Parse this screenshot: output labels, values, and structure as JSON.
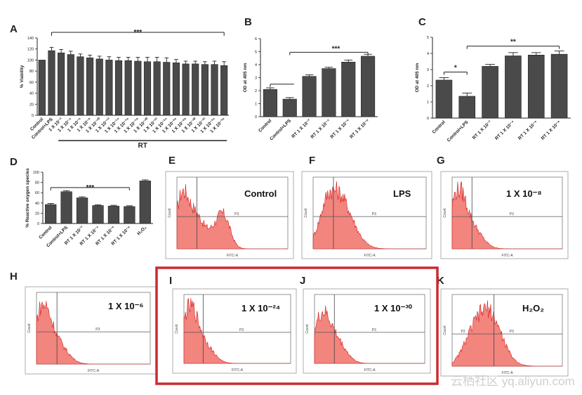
{
  "chart_data": [
    {
      "panel": "A",
      "type": "bar",
      "ylabel": "% Viability",
      "ylim": [
        0,
        140
      ],
      "yticks": [
        "0",
        "20",
        "40",
        "60",
        "80",
        "100",
        "120",
        "140"
      ],
      "categories": [
        "Control",
        "Control+LPS",
        "1 X 10⁻²",
        "1 X 10⁻⁴",
        "1 X 10⁻⁶",
        "1 X 10⁻⁸",
        "1 X 10⁻¹⁰",
        "1 X 10⁻¹²",
        "1 X 10⁻¹⁴",
        "1 X 10⁻¹⁶",
        "1 X 10⁻¹⁸",
        "1 X 10⁻²⁰",
        "1 X 10⁻²²",
        "1 X 10⁻²⁴",
        "1 X 10⁻²⁶",
        "1 X 10⁻²⁸",
        "1 X 10⁻³⁰",
        "1 X 10⁻³²",
        "1 X 10⁻³⁴",
        "1 X 10⁻³⁶"
      ],
      "values": [
        100,
        117,
        113,
        110,
        106,
        104,
        102,
        100,
        99,
        99,
        98,
        97,
        97,
        96,
        95,
        93,
        93,
        92,
        92,
        90
      ],
      "errors": [
        0,
        6,
        6,
        6,
        5,
        5,
        5,
        6,
        6,
        6,
        7,
        8,
        8,
        8,
        6,
        5,
        5,
        5,
        6,
        7
      ],
      "group_label": "RT",
      "significance": "***"
    },
    {
      "panel": "B",
      "type": "bar",
      "ylabel": "OD at 405 nm",
      "ylim": [
        0,
        6
      ],
      "yticks": [
        "0",
        "1",
        "2",
        "3",
        "4",
        "5",
        "6"
      ],
      "categories": [
        "Control",
        "Control+LPS",
        "RT 1 X 10⁻²",
        "RT 1 X 10⁻⁴",
        "RT 1 X 10⁻⁶",
        "RT 1 X 10⁻⁸"
      ],
      "values": [
        2.1,
        1.35,
        3.1,
        3.7,
        4.2,
        4.65
      ],
      "errors": [
        0.12,
        0.12,
        0.12,
        0.1,
        0.15,
        0.15
      ],
      "significance": "***"
    },
    {
      "panel": "C",
      "type": "bar",
      "ylabel": "OD at 405 nm",
      "ylim": [
        0,
        5
      ],
      "yticks": [
        "0",
        "1",
        "2",
        "3",
        "4",
        "5"
      ],
      "categories": [
        "Control",
        "Control+LPS",
        "RT 1 X 10⁻²",
        "RT 1 X 10⁻⁴",
        "RT 1 X 10⁻⁶",
        "RT 1 X 10⁻⁸"
      ],
      "values": [
        2.35,
        1.35,
        3.2,
        3.85,
        3.9,
        3.95
      ],
      "errors": [
        0.15,
        0.2,
        0.12,
        0.2,
        0.15,
        0.2
      ],
      "sig_small": "*",
      "significance": "**"
    },
    {
      "panel": "D",
      "type": "bar",
      "ylabel": "% Reactive oxygen species",
      "ylim": [
        0,
        100
      ],
      "yticks": [
        "0",
        "20",
        "40",
        "60",
        "80",
        "100"
      ],
      "categories": [
        "Control",
        "Control+LPS",
        "RT 1 X 10⁻²",
        "RT 1 X 10⁻⁴",
        "RT 1 X 10⁻⁶",
        "RT 1 X 10⁻⁸",
        "H₂O₂"
      ],
      "values": [
        37,
        62,
        50,
        35,
        34,
        33,
        83
      ],
      "errors": [
        2,
        2,
        2,
        1.5,
        1.5,
        1.5,
        2
      ],
      "significance": "***"
    }
  ],
  "flow_panels": [
    {
      "panel": "E",
      "title": "Control",
      "gate": "P3",
      "x_axis": "FITC-A",
      "y_axis": "Count"
    },
    {
      "panel": "F",
      "title": "LPS",
      "gate": "P3",
      "x_axis": "FITC-A",
      "y_axis": "Count"
    },
    {
      "panel": "G",
      "title": "1 X 10⁻⁸",
      "gate": "P3",
      "x_axis": "FITC-A",
      "y_axis": "Count"
    },
    {
      "panel": "H",
      "title": "1 X 10⁻⁶",
      "gate": "P3",
      "x_axis": "FITC-A",
      "y_axis": "Count"
    },
    {
      "panel": "I",
      "title": "1 X 10⁻²⁴",
      "gate": "P3",
      "x_axis": "FITC-A",
      "y_axis": "Count"
    },
    {
      "panel": "J",
      "title": "1 X 10⁻³⁰",
      "gate": "P3",
      "x_axis": "FITC-A",
      "y_axis": "Count"
    },
    {
      "panel": "K",
      "title": "H₂O₂",
      "gate": "P3",
      "gate2": "P2",
      "x_axis": "FITC-A",
      "y_axis": "Count"
    }
  ],
  "watermark": "云栖社区 yq.aliyun.com",
  "colors": {
    "bar": "#4a4a4a",
    "hist_fill": "#f2857e",
    "hist_line": "#d42020",
    "highlight": "#cc2a30"
  }
}
